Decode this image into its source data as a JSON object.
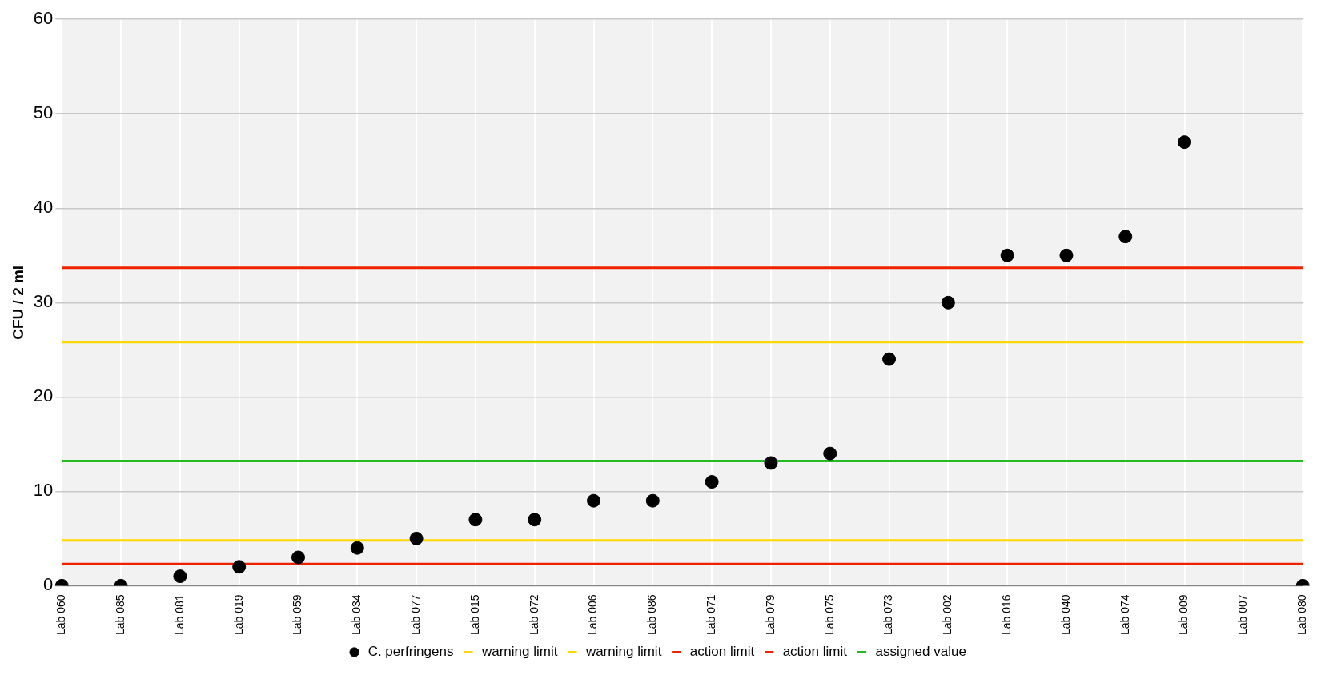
{
  "chart_data": {
    "type": "scatter",
    "ylabel": "CFU / 2 ml",
    "categories": [
      "Lab 060",
      "Lab 085",
      "Lab 081",
      "Lab 019",
      "Lab 059",
      "Lab 034",
      "Lab 077",
      "Lab 015",
      "Lab 072",
      "Lab 006",
      "Lab 086",
      "Lab 071",
      "Lab 079",
      "Lab 075",
      "Lab 073",
      "Lab 002",
      "Lab 016",
      "Lab 040",
      "Lab 074",
      "Lab 009",
      "Lab 007",
      "Lab 080"
    ],
    "series": [
      {
        "name": "C. perfringens",
        "color": "#000000",
        "values": [
          0,
          0,
          1,
          2,
          3,
          4,
          5,
          7,
          7,
          9,
          9,
          11,
          13,
          14,
          24,
          30,
          35,
          35,
          37,
          47,
          null,
          0
        ]
      },
      {
        "name": "warning limit",
        "type": "line",
        "marker": "none",
        "color": "#ffd700",
        "values": [
          25.8,
          25.8,
          25.8,
          25.8,
          25.8,
          25.8,
          25.8,
          25.8,
          25.8,
          25.8,
          25.8,
          25.8,
          25.8,
          25.8,
          25.8,
          25.8,
          25.8,
          25.8,
          25.8,
          25.8,
          25.8,
          25.8
        ]
      },
      {
        "name": "warning limit",
        "type": "line",
        "marker": "none",
        "color": "#ffd700",
        "values": [
          4.8,
          4.8,
          4.8,
          4.8,
          4.8,
          4.8,
          4.8,
          4.8,
          4.8,
          4.8,
          4.8,
          4.8,
          4.8,
          4.8,
          4.8,
          4.8,
          4.8,
          4.8,
          4.8,
          4.8,
          4.8,
          4.8
        ]
      },
      {
        "name": "action limit",
        "type": "line",
        "marker": "none",
        "color": "#ee2200",
        "values": [
          33.7,
          33.7,
          33.7,
          33.7,
          33.7,
          33.7,
          33.7,
          33.7,
          33.7,
          33.7,
          33.7,
          33.7,
          33.7,
          33.7,
          33.7,
          33.7,
          33.7,
          33.7,
          33.7,
          33.7,
          33.7,
          33.7
        ]
      },
      {
        "name": "action limit",
        "type": "line",
        "marker": "none",
        "color": "#ee2200",
        "values": [
          2.3,
          2.3,
          2.3,
          2.3,
          2.3,
          2.3,
          2.3,
          2.3,
          2.3,
          2.3,
          2.3,
          2.3,
          2.3,
          2.3,
          2.3,
          2.3,
          2.3,
          2.3,
          2.3,
          2.3,
          2.3,
          2.3
        ]
      },
      {
        "name": "assigned value",
        "type": "line",
        "marker": "none",
        "color": "#22bb22",
        "values": [
          13.2,
          13.2,
          13.2,
          13.2,
          13.2,
          13.2,
          13.2,
          13.2,
          13.2,
          13.2,
          13.2,
          13.2,
          13.2,
          13.2,
          13.2,
          13.2,
          13.2,
          13.2,
          13.2,
          13.2,
          13.2,
          13.2
        ]
      }
    ],
    "ylim": [
      0,
      60
    ],
    "yticks": [
      0,
      10,
      20,
      30,
      40,
      50,
      60
    ],
    "grid": true,
    "legend": "bottom",
    "marker": "circle"
  }
}
